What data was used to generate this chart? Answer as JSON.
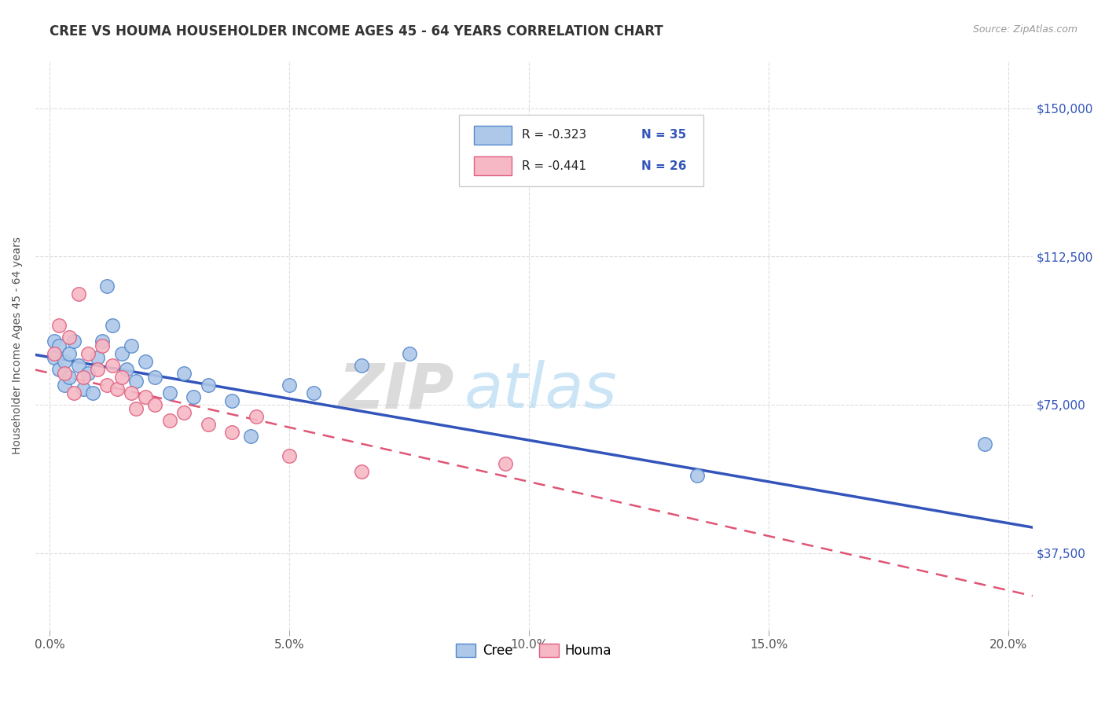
{
  "title": "CREE VS HOUMA HOUSEHOLDER INCOME AGES 45 - 64 YEARS CORRELATION CHART",
  "source": "Source: ZipAtlas.com",
  "xlabel_ticks": [
    "0.0%",
    "",
    "",
    "",
    "",
    "5.0%",
    "",
    "",
    "",
    "",
    "10.0%",
    "",
    "",
    "",
    "",
    "15.0%",
    "",
    "",
    "",
    "",
    "20.0%"
  ],
  "xlabel_vals": [
    0.0,
    0.01,
    0.02,
    0.03,
    0.04,
    0.05,
    0.06,
    0.07,
    0.08,
    0.09,
    0.1,
    0.11,
    0.12,
    0.13,
    0.14,
    0.15,
    0.16,
    0.17,
    0.18,
    0.19,
    0.2
  ],
  "xlabel_major_ticks": [
    "0.0%",
    "5.0%",
    "10.0%",
    "15.0%",
    "20.0%"
  ],
  "xlabel_major_vals": [
    0.0,
    0.05,
    0.1,
    0.15,
    0.2
  ],
  "ylabel_ticks": [
    "$37,500",
    "$75,000",
    "$112,500",
    "$150,000"
  ],
  "ylabel_vals": [
    37500,
    75000,
    112500,
    150000
  ],
  "ylim": [
    18000,
    162000
  ],
  "xlim": [
    -0.003,
    0.205
  ],
  "ylabel": "Householder Income Ages 45 - 64 years",
  "watermark_zip": "ZIP",
  "watermark_atlas": "atlas",
  "legend_r_cree": "R = -0.323",
  "legend_n_cree": "N = 35",
  "legend_r_houma": "R = -0.441",
  "legend_n_houma": "N = 26",
  "cree_color": "#adc8e8",
  "houma_color": "#f5b8c4",
  "cree_edge_color": "#5588cc",
  "houma_edge_color": "#e06080",
  "cree_line_color": "#3355bb",
  "houma_line_color": "#e05575",
  "cree_x": [
    0.001,
    0.001,
    0.002,
    0.002,
    0.003,
    0.003,
    0.004,
    0.004,
    0.005,
    0.006,
    0.007,
    0.008,
    0.009,
    0.01,
    0.011,
    0.012,
    0.013,
    0.015,
    0.016,
    0.017,
    0.018,
    0.02,
    0.022,
    0.025,
    0.028,
    0.03,
    0.033,
    0.038,
    0.042,
    0.05,
    0.055,
    0.065,
    0.075,
    0.135,
    0.195
  ],
  "cree_y": [
    91000,
    87000,
    90000,
    84000,
    86000,
    80000,
    88000,
    82000,
    91000,
    85000,
    79000,
    83000,
    78000,
    87000,
    91000,
    105000,
    95000,
    88000,
    84000,
    90000,
    81000,
    86000,
    82000,
    78000,
    83000,
    77000,
    80000,
    76000,
    67000,
    80000,
    78000,
    85000,
    88000,
    57000,
    65000
  ],
  "houma_x": [
    0.001,
    0.002,
    0.003,
    0.004,
    0.005,
    0.006,
    0.007,
    0.008,
    0.01,
    0.011,
    0.012,
    0.013,
    0.014,
    0.015,
    0.017,
    0.018,
    0.02,
    0.022,
    0.025,
    0.028,
    0.033,
    0.038,
    0.043,
    0.05,
    0.065,
    0.095
  ],
  "houma_y": [
    88000,
    95000,
    83000,
    92000,
    78000,
    103000,
    82000,
    88000,
    84000,
    90000,
    80000,
    85000,
    79000,
    82000,
    78000,
    74000,
    77000,
    75000,
    71000,
    73000,
    70000,
    68000,
    72000,
    62000,
    58000,
    60000
  ],
  "background_color": "#ffffff",
  "grid_color": "#dddddd"
}
